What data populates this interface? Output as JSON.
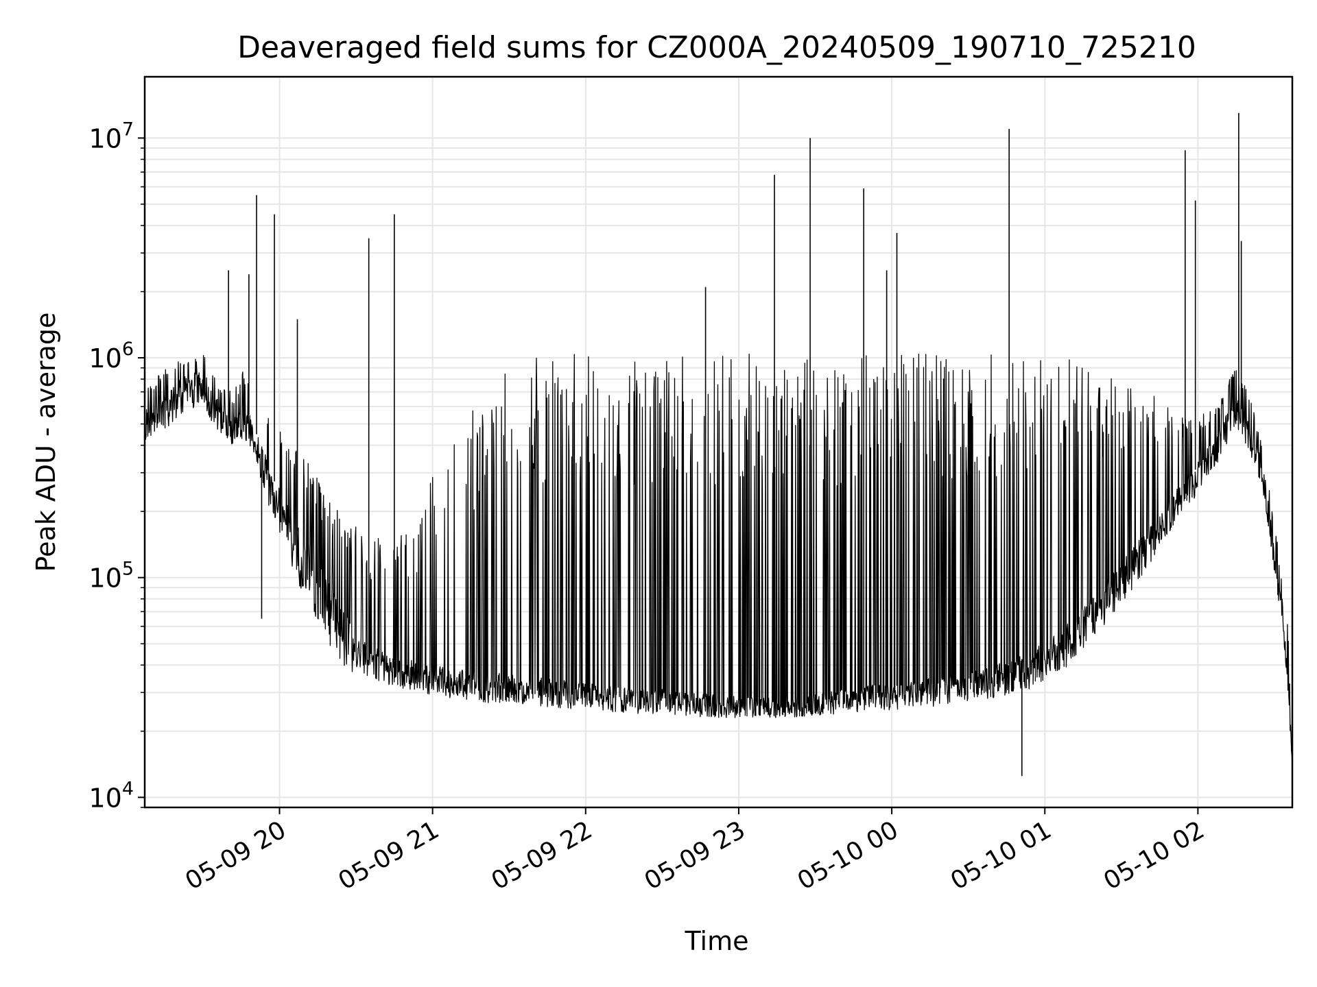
{
  "chart_data": {
    "type": "line",
    "title": "Deaveraged field sums for CZ000A_20240509_190710_725210",
    "xlabel": "Time",
    "ylabel": "Peak ADU - average",
    "yscale": "log",
    "ylim": [
      9000,
      19000000
    ],
    "xlim": [
      "2024-05-09 19:07:10",
      "2024-05-10 02:37:00"
    ],
    "grid": true,
    "legend": "none",
    "line_color": "#000000",
    "x_ticks": [
      {
        "t": "2024-05-09 20:00",
        "label": "05-09 20"
      },
      {
        "t": "2024-05-09 21:00",
        "label": "05-09 21"
      },
      {
        "t": "2024-05-09 22:00",
        "label": "05-09 22"
      },
      {
        "t": "2024-05-09 23:00",
        "label": "05-09 23"
      },
      {
        "t": "2024-05-10 00:00",
        "label": "05-10 00"
      },
      {
        "t": "2024-05-10 01:00",
        "label": "05-10 01"
      },
      {
        "t": "2024-05-10 02:00",
        "label": "05-10 02"
      }
    ],
    "y_ticks": [
      {
        "v": 10000,
        "base": "10",
        "exp": "4"
      },
      {
        "v": 100000,
        "base": "10",
        "exp": "5"
      },
      {
        "v": 1000000,
        "base": "10",
        "exp": "6"
      },
      {
        "v": 10000000,
        "base": "10",
        "exp": "7"
      }
    ],
    "series": [
      {
        "x": [
          "2024-05-09 19:07:10",
          "2024-05-09 19:15",
          "2024-05-09 19:22",
          "2024-05-09 19:30",
          "2024-05-09 19:36",
          "2024-05-09 19:42",
          "2024-05-09 19:46",
          "2024-05-09 19:48",
          "2024-05-09 19:52",
          "2024-05-09 19:56",
          "2024-05-09 20:00",
          "2024-05-09 20:05",
          "2024-05-09 20:10",
          "2024-05-09 20:15",
          "2024-05-09 20:20",
          "2024-05-09 20:25",
          "2024-05-09 20:30",
          "2024-05-09 20:35",
          "2024-05-09 20:40",
          "2024-05-09 20:45",
          "2024-05-09 20:50",
          "2024-05-09 20:55",
          "2024-05-09 21:00",
          "2024-05-09 21:10",
          "2024-05-09 21:20",
          "2024-05-09 21:30",
          "2024-05-09 21:40",
          "2024-05-09 21:50",
          "2024-05-09 22:00",
          "2024-05-09 22:10",
          "2024-05-09 22:20",
          "2024-05-09 22:30",
          "2024-05-09 22:40",
          "2024-05-09 22:50",
          "2024-05-09 23:00",
          "2024-05-09 23:10",
          "2024-05-09 23:20",
          "2024-05-09 23:30",
          "2024-05-09 23:40",
          "2024-05-09 23:50",
          "2024-05-10 00:00",
          "2024-05-10 00:10",
          "2024-05-10 00:20",
          "2024-05-10 00:30",
          "2024-05-10 00:40",
          "2024-05-10 00:50",
          "2024-05-10 01:00",
          "2024-05-10 01:10",
          "2024-05-10 01:20",
          "2024-05-10 01:30",
          "2024-05-10 01:40",
          "2024-05-10 01:50",
          "2024-05-10 02:00",
          "2024-05-10 02:07",
          "2024-05-10 02:12",
          "2024-05-10 02:15",
          "2024-05-10 02:20",
          "2024-05-10 02:25",
          "2024-05-10 02:28",
          "2024-05-10 02:31",
          "2024-05-10 02:33",
          "2024-05-10 02:35",
          "2024-05-10 02:37"
        ],
        "baseline": [
          550000,
          650000,
          780000,
          850000,
          600000,
          500000,
          600000,
          550000,
          420000,
          300000,
          250000,
          180000,
          140000,
          110000,
          85000,
          68000,
          55000,
          48000,
          44000,
          42000,
          41000,
          40000,
          39000,
          37000,
          36000,
          35000,
          34000,
          33000,
          32000,
          31000,
          30000,
          30000,
          29000,
          28500,
          28000,
          28000,
          28500,
          29000,
          30000,
          31000,
          32000,
          33000,
          34000,
          36000,
          38000,
          42000,
          48000,
          60000,
          80000,
          110000,
          160000,
          230000,
          320000,
          420000,
          560000,
          650000,
          500000,
          350000,
          200000,
          100000,
          80000,
          40000,
          15000
        ],
        "band_high": [
          700000,
          900000,
          1000000,
          1050000,
          800000,
          700000,
          900000,
          800000,
          650000,
          550000,
          500000,
          420000,
          350000,
          280000,
          230000,
          190000,
          170000,
          160000,
          150000,
          150000,
          160000,
          200000,
          300000,
          500000,
          700000,
          900000,
          1000000,
          1050000,
          1050000,
          1050000,
          1050000,
          1050000,
          1050000,
          1050000,
          1050000,
          1050000,
          1050000,
          1050000,
          1050000,
          1050000,
          1050000,
          1050000,
          1050000,
          1050000,
          1050000,
          1050000,
          1050000,
          1000000,
          900000,
          800000,
          700000,
          600000,
          550000,
          600000,
          800000,
          900000,
          700000,
          400000,
          250000,
          150000,
          100000,
          70000,
          20000
        ],
        "band_low": [
          420000,
          470000,
          560000,
          620000,
          430000,
          380000,
          420000,
          400000,
          300000,
          200000,
          160000,
          110000,
          80000,
          60000,
          48000,
          40000,
          36000,
          34000,
          33000,
          32000,
          31000,
          30000,
          29000,
          28000,
          27000,
          26500,
          26000,
          25500,
          25000,
          24500,
          24000,
          24000,
          23500,
          23000,
          23000,
          23000,
          23000,
          23500,
          24000,
          24500,
          25000,
          25500,
          26000,
          27000,
          28000,
          30000,
          33000,
          40000,
          55000,
          75000,
          110000,
          170000,
          240000,
          320000,
          420000,
          480000,
          380000,
          260000,
          160000,
          85000,
          65000,
          32000,
          14000
        ],
        "spikes": [
          {
            "t": "2024-05-09 19:40",
            "y": 2500000
          },
          {
            "t": "2024-05-09 19:48",
            "y": 2400000
          },
          {
            "t": "2024-05-09 19:51",
            "y": 5500000
          },
          {
            "t": "2024-05-09 19:58",
            "y": 4500000
          },
          {
            "t": "2024-05-09 19:53",
            "y": 65000
          },
          {
            "t": "2024-05-09 20:07",
            "y": 1500000
          },
          {
            "t": "2024-05-09 20:35",
            "y": 3500000
          },
          {
            "t": "2024-05-09 20:45",
            "y": 4500000
          },
          {
            "t": "2024-05-09 22:47",
            "y": 2100000
          },
          {
            "t": "2024-05-09 23:14",
            "y": 6800000
          },
          {
            "t": "2024-05-09 23:28",
            "y": 10000000
          },
          {
            "t": "2024-05-09 23:49",
            "y": 5900000
          },
          {
            "t": "2024-05-09 23:58",
            "y": 2500000
          },
          {
            "t": "2024-05-10 00:02",
            "y": 3700000
          },
          {
            "t": "2024-05-10 00:46",
            "y": 11000000
          },
          {
            "t": "2024-05-10 00:51",
            "y": 12500
          },
          {
            "t": "2024-05-10 01:55",
            "y": 8800000
          },
          {
            "t": "2024-05-10 01:59",
            "y": 5200000
          },
          {
            "t": "2024-05-10 02:16",
            "y": 13000000
          },
          {
            "t": "2024-05-10 02:17",
            "y": 3400000
          }
        ]
      }
    ]
  }
}
